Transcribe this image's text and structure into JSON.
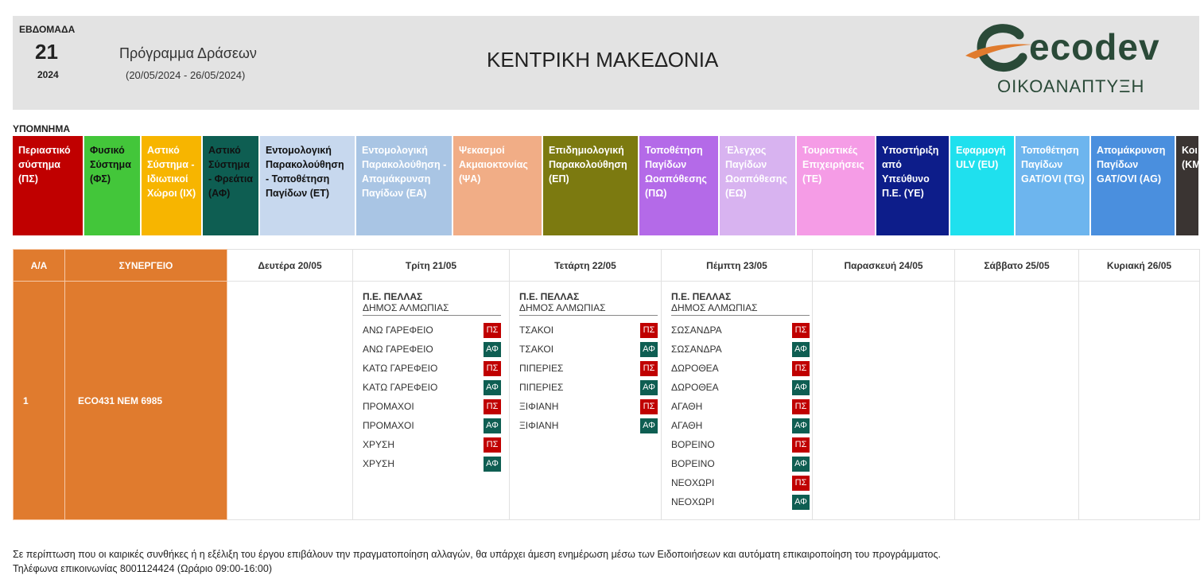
{
  "header": {
    "week_label": "ΕΒΔΟΜΑΔΑ",
    "week_number": "21",
    "year": "2024",
    "program_title": "Πρόγραμμα Δράσεων",
    "program_dates": "(20/05/2024 - 26/05/2024)",
    "region": "ΚΕΝΤΡΙΚΗ ΜΑΚΕΔΟΝΙΑ",
    "logo_text": "ecodev",
    "logo_sub": "ΟΙΚΟΑΝΑΠΤΥΞΗ"
  },
  "legend": {
    "title": "ΥΠΟΜΝΗΜΑ",
    "items": [
      {
        "label": "Περιαστικό σύστημα (ΠΣ)",
        "bg": "#c00000",
        "fg": "#ffffff",
        "w": 90
      },
      {
        "label": "Φυσικό Σύστημα (ΦΣ)",
        "bg": "#43c63a",
        "fg": "#111111",
        "w": 72
      },
      {
        "label": "Αστικό Σύστημα - Ιδιωτικοί Χώροι (ΙΧ)",
        "bg": "#f7b500",
        "fg": "#ffffff",
        "w": 77
      },
      {
        "label": "Αστικό Σύστημα - Φρεάτια (ΑΦ)",
        "bg": "#0e5e52",
        "fg": "#111111",
        "w": 72
      },
      {
        "label": "Εντομολογική Παρακολούθηση - Τοποθέτηση Παγίδων (ΕΤ)",
        "bg": "#c7d8ee",
        "fg": "#111111",
        "w": 121
      },
      {
        "label": "Εντομολογική Παρακολούθηση - Απομάκρυνση Παγίδων (ΕΑ)",
        "bg": "#a9c5e4",
        "fg": "#ffffff",
        "w": 122
      },
      {
        "label": "Ψεκασμοί Ακμαιοκτονίας (ΨΑ)",
        "bg": "#f1ad86",
        "fg": "#ffffff",
        "w": 113
      },
      {
        "label": "Επιδημιολογική Παρακολούθηση (ΕΠ)",
        "bg": "#7c7a10",
        "fg": "#ffffff",
        "w": 121
      },
      {
        "label": "Τοποθέτηση Παγίδων Ωοαπόθεσης (ΠΩ)",
        "bg": "#b46ae8",
        "fg": "#ffffff",
        "w": 101
      },
      {
        "label": "Έλεγχος Παγίδων Ωοαπόθεσης (ΕΩ)",
        "bg": "#d8b3f0",
        "fg": "#ffffff",
        "w": 97
      },
      {
        "label": "Τουριστικές Επιχειρήσεις (ΤΕ)",
        "bg": "#f59ce6",
        "fg": "#ffffff",
        "w": 100
      },
      {
        "label": "Υποστήριξη από Υπεύθυνο Π.Ε. (ΥΕ)",
        "bg": "#0d1d8a",
        "fg": "#ffffff",
        "w": 93
      },
      {
        "label": "Εφαρμογή ULV (EU)",
        "bg": "#1fe0ee",
        "fg": "#ffffff",
        "w": 82
      },
      {
        "label": "Τοποθέτηση Παγίδων GAT/OVI (TG)",
        "bg": "#6db5ee",
        "fg": "#ffffff",
        "w": 95
      },
      {
        "label": "Απομάκρυνση Παγίδων GAT/OVI (AG)",
        "bg": "#4a8fde",
        "fg": "#ffffff",
        "w": 107
      },
      {
        "label": "Κοι (ΚΜ",
        "bg": "#3a3432",
        "fg": "#ffffff",
        "w": 30
      }
    ]
  },
  "table": {
    "col_aa": "Α/Α",
    "col_team": "ΣΥΝΕΡΓΕΙΟ",
    "days": [
      "Δευτέρα 20/05",
      "Τρίτη 21/05",
      "Τετάρτη 22/05",
      "Πέμπτη 23/05",
      "Παρασκευή 24/05",
      "Σάββατο 25/05",
      "Κυριακή 26/05"
    ],
    "rows": [
      {
        "aa": "1",
        "team": "ECO431  ΝΕΜ 6985",
        "day_entries": [
          null,
          {
            "pe": "Π.Ε. ΠΕΛΛΑΣ",
            "dimos": "ΔΗΜΟΣ ΑΛΜΩΠΙΑΣ",
            "items": [
              {
                "place": "ΑΝΩ ΓΑΡΕΦΕΙΟ",
                "code": "ΠΣ"
              },
              {
                "place": "ΑΝΩ ΓΑΡΕΦΕΙΟ",
                "code": "ΑΦ"
              },
              {
                "place": "ΚΑΤΩ ΓΑΡΕΦΕΙΟ",
                "code": "ΠΣ"
              },
              {
                "place": "ΚΑΤΩ ΓΑΡΕΦΕΙΟ",
                "code": "ΑΦ"
              },
              {
                "place": "ΠΡΟΜΑΧΟΙ",
                "code": "ΠΣ"
              },
              {
                "place": "ΠΡΟΜΑΧΟΙ",
                "code": "ΑΦ"
              },
              {
                "place": "ΧΡΥΣΗ",
                "code": "ΠΣ"
              },
              {
                "place": "ΧΡΥΣΗ",
                "code": "ΑΦ"
              }
            ]
          },
          {
            "pe": "Π.Ε. ΠΕΛΛΑΣ",
            "dimos": "ΔΗΜΟΣ ΑΛΜΩΠΙΑΣ",
            "items": [
              {
                "place": "ΤΣΑΚΟΙ",
                "code": "ΠΣ"
              },
              {
                "place": "ΤΣΑΚΟΙ",
                "code": "ΑΦ"
              },
              {
                "place": "ΠΙΠΕΡΙΕΣ",
                "code": "ΠΣ"
              },
              {
                "place": "ΠΙΠΕΡΙΕΣ",
                "code": "ΑΦ"
              },
              {
                "place": "ΞΙΦΙΑΝΗ",
                "code": "ΠΣ"
              },
              {
                "place": "ΞΙΦΙΑΝΗ",
                "code": "ΑΦ"
              }
            ]
          },
          {
            "pe": "Π.Ε. ΠΕΛΛΑΣ",
            "dimos": "ΔΗΜΟΣ ΑΛΜΩΠΙΑΣ",
            "items": [
              {
                "place": "ΣΩΣΑΝΔΡΑ",
                "code": "ΠΣ"
              },
              {
                "place": "ΣΩΣΑΝΔΡΑ",
                "code": "ΑΦ"
              },
              {
                "place": "ΔΩΡΟΘΕΑ",
                "code": "ΠΣ"
              },
              {
                "place": "ΔΩΡΟΘΕΑ",
                "code": "ΑΦ"
              },
              {
                "place": "ΑΓΑΘΗ",
                "code": "ΠΣ"
              },
              {
                "place": "ΑΓΑΘΗ",
                "code": "ΑΦ"
              },
              {
                "place": "ΒΟΡΕΙΝΟ",
                "code": "ΠΣ"
              },
              {
                "place": "ΒΟΡΕΙΝΟ",
                "code": "ΑΦ"
              },
              {
                "place": "ΝΕΟΧΩΡΙ",
                "code": "ΠΣ"
              },
              {
                "place": "ΝΕΟΧΩΡΙ",
                "code": "ΑΦ"
              }
            ]
          },
          null,
          null,
          null
        ]
      }
    ]
  },
  "footer": {
    "line1": "Σε περίπτωση που οι καιρικές συνθήκες ή η εξέλιξη του έργου επιβάλουν την πραγματοποίηση αλλαγών, θα υπάρχει άμεση ενημέρωση μέσω των Ειδοποιήσεων και αυτόματη επικαιροποίηση του προγράμματος.",
    "line2": "Τηλέφωνα επικοινωνίας 8001124424 (Ωράριο 09:00-16:00)"
  }
}
